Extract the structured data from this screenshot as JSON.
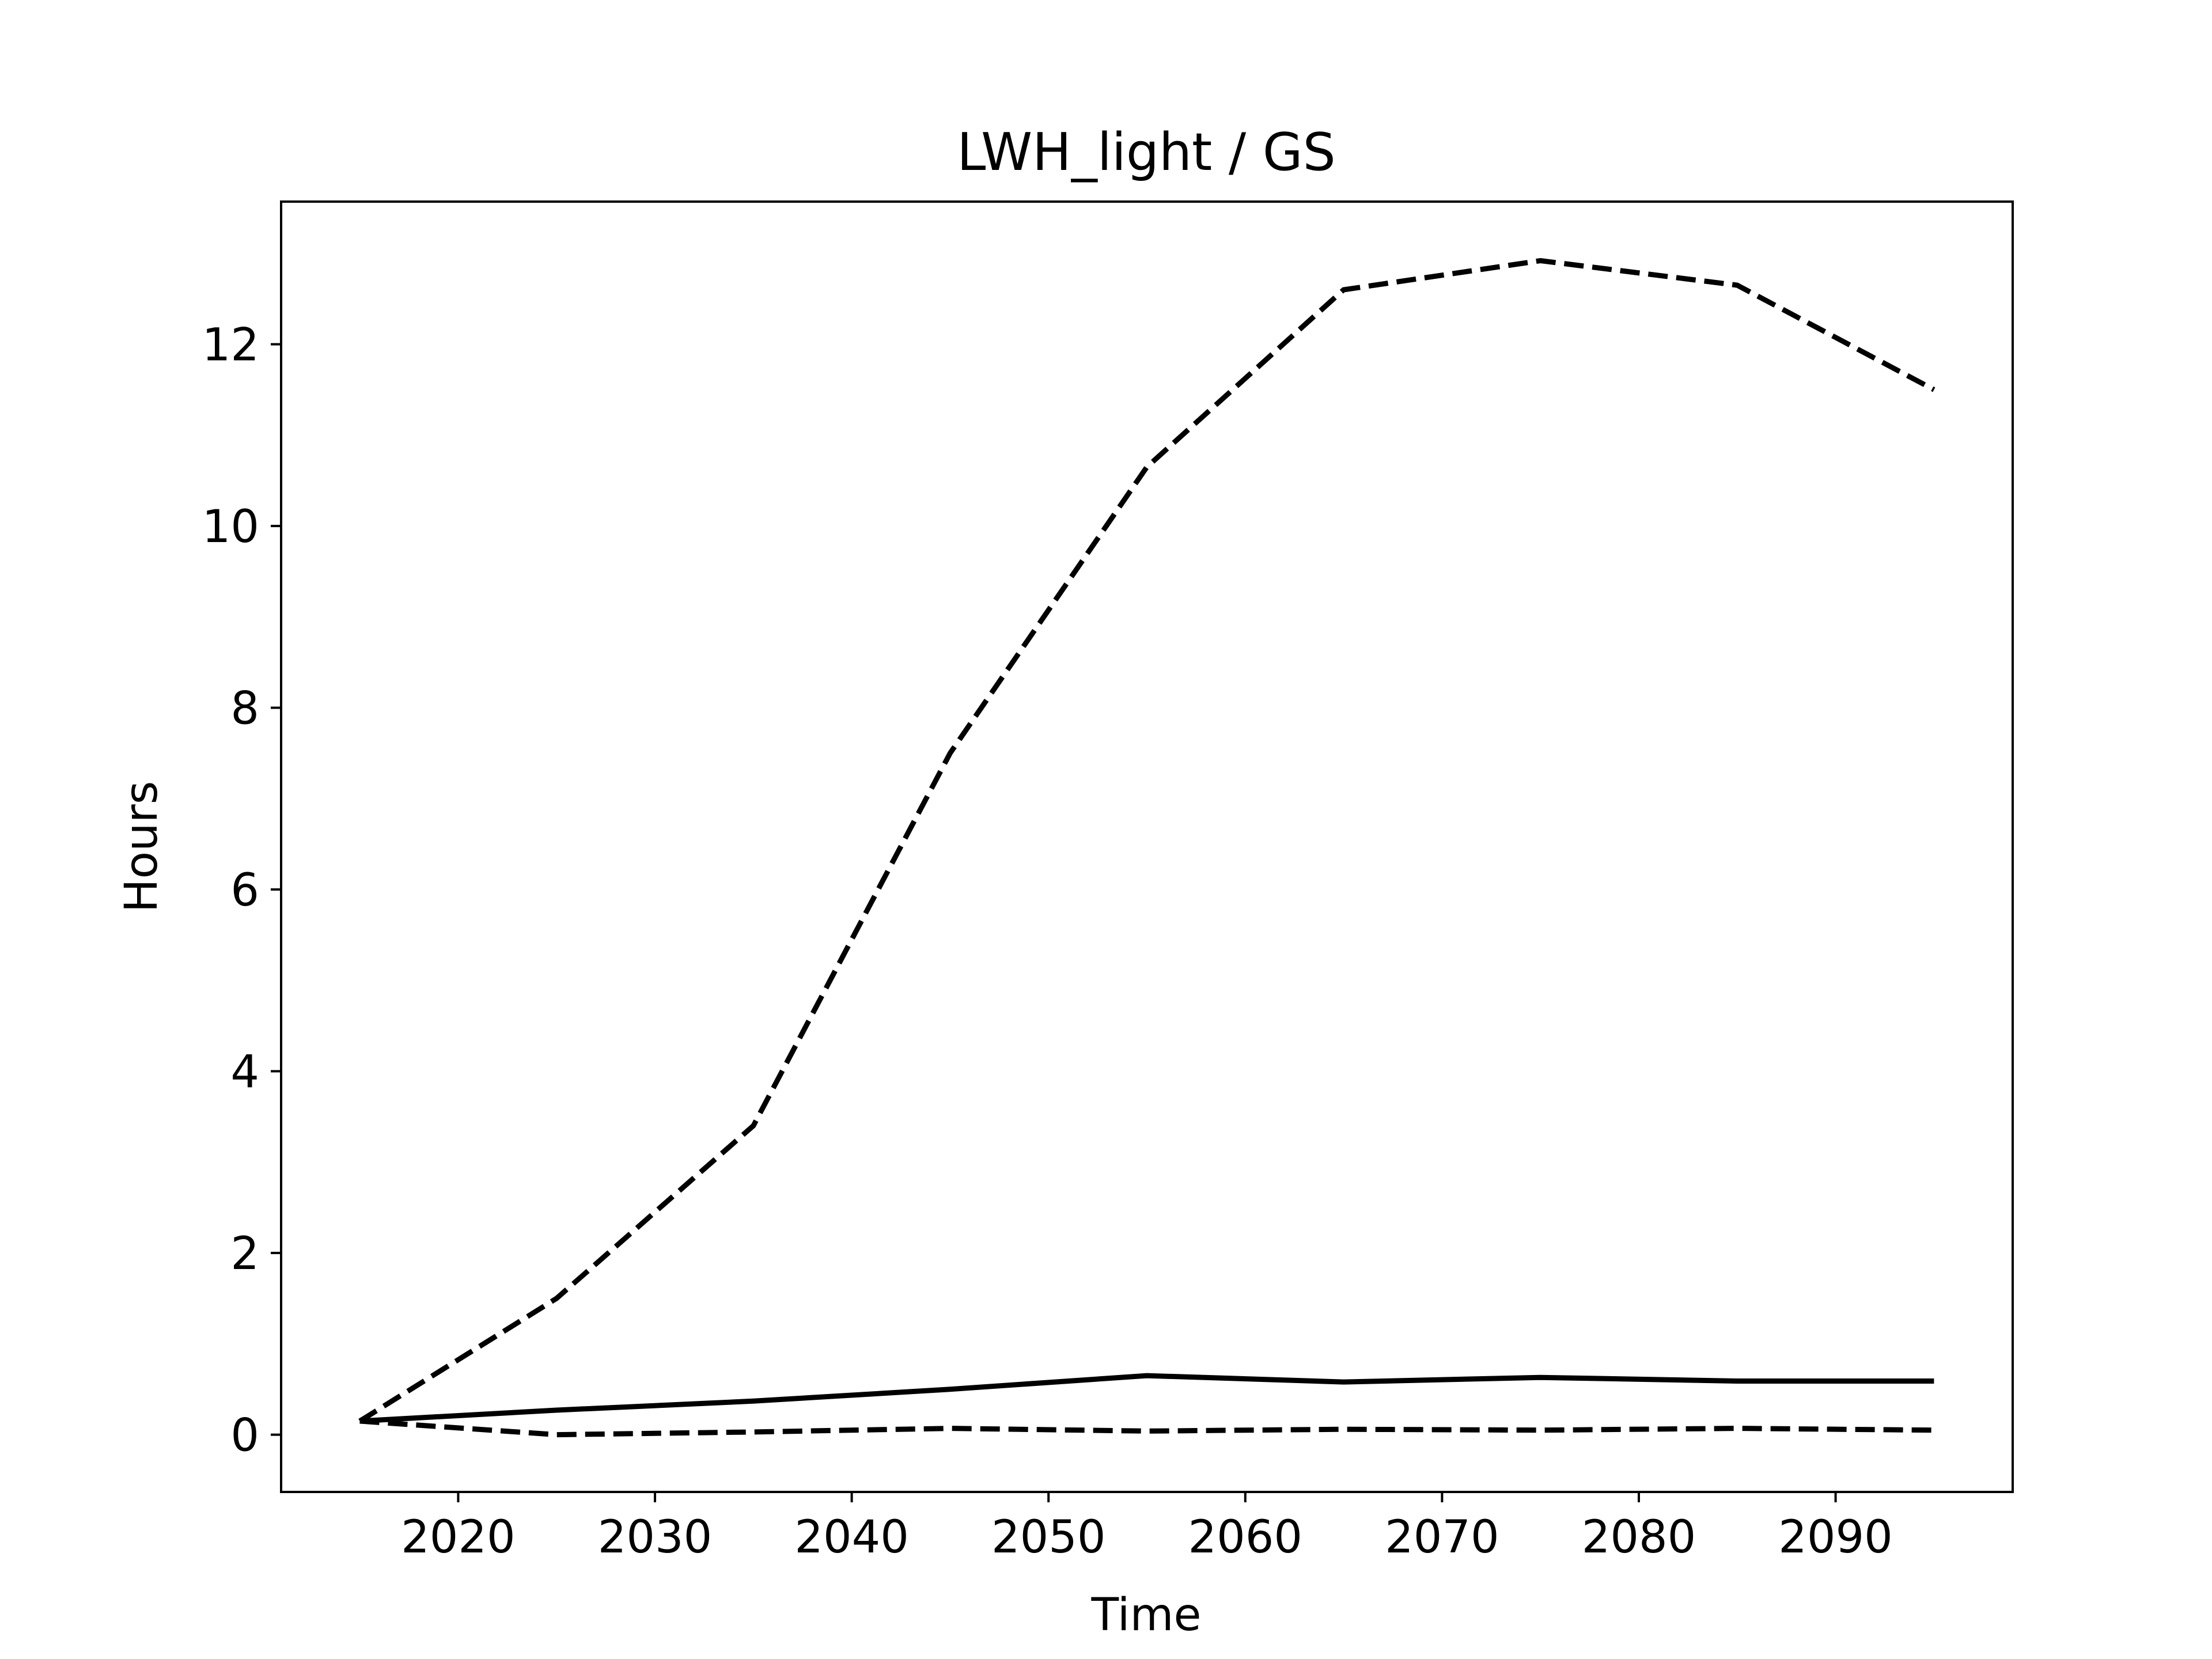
{
  "chart_data": {
    "type": "line",
    "title": "LWH_light / GS",
    "xlabel": "Time",
    "ylabel": "Hours",
    "x": [
      2015,
      2025,
      2035,
      2045,
      2055,
      2065,
      2075,
      2085,
      2095
    ],
    "series": [
      {
        "style": "dashed",
        "color": "#000000",
        "values": [
          0.15,
          1.5,
          3.4,
          7.5,
          10.65,
          12.6,
          12.92,
          12.65,
          11.5
        ]
      },
      {
        "style": "solid",
        "color": "#000000",
        "values": [
          0.15,
          0.27,
          0.37,
          0.5,
          0.65,
          0.58,
          0.63,
          0.59,
          0.59
        ]
      },
      {
        "style": "dashed",
        "color": "#000000",
        "values": [
          0.15,
          0.0,
          0.03,
          0.07,
          0.04,
          0.06,
          0.05,
          0.07,
          0.05
        ]
      }
    ],
    "xlim": [
      2011.0,
      2099.0
    ],
    "ylim": [
      -0.63,
      13.57
    ],
    "xticks": [
      2020,
      2030,
      2040,
      2050,
      2060,
      2070,
      2080,
      2090
    ],
    "yticks": [
      0,
      2,
      4,
      6,
      8,
      10,
      12
    ],
    "grid": false,
    "legend": "none"
  }
}
